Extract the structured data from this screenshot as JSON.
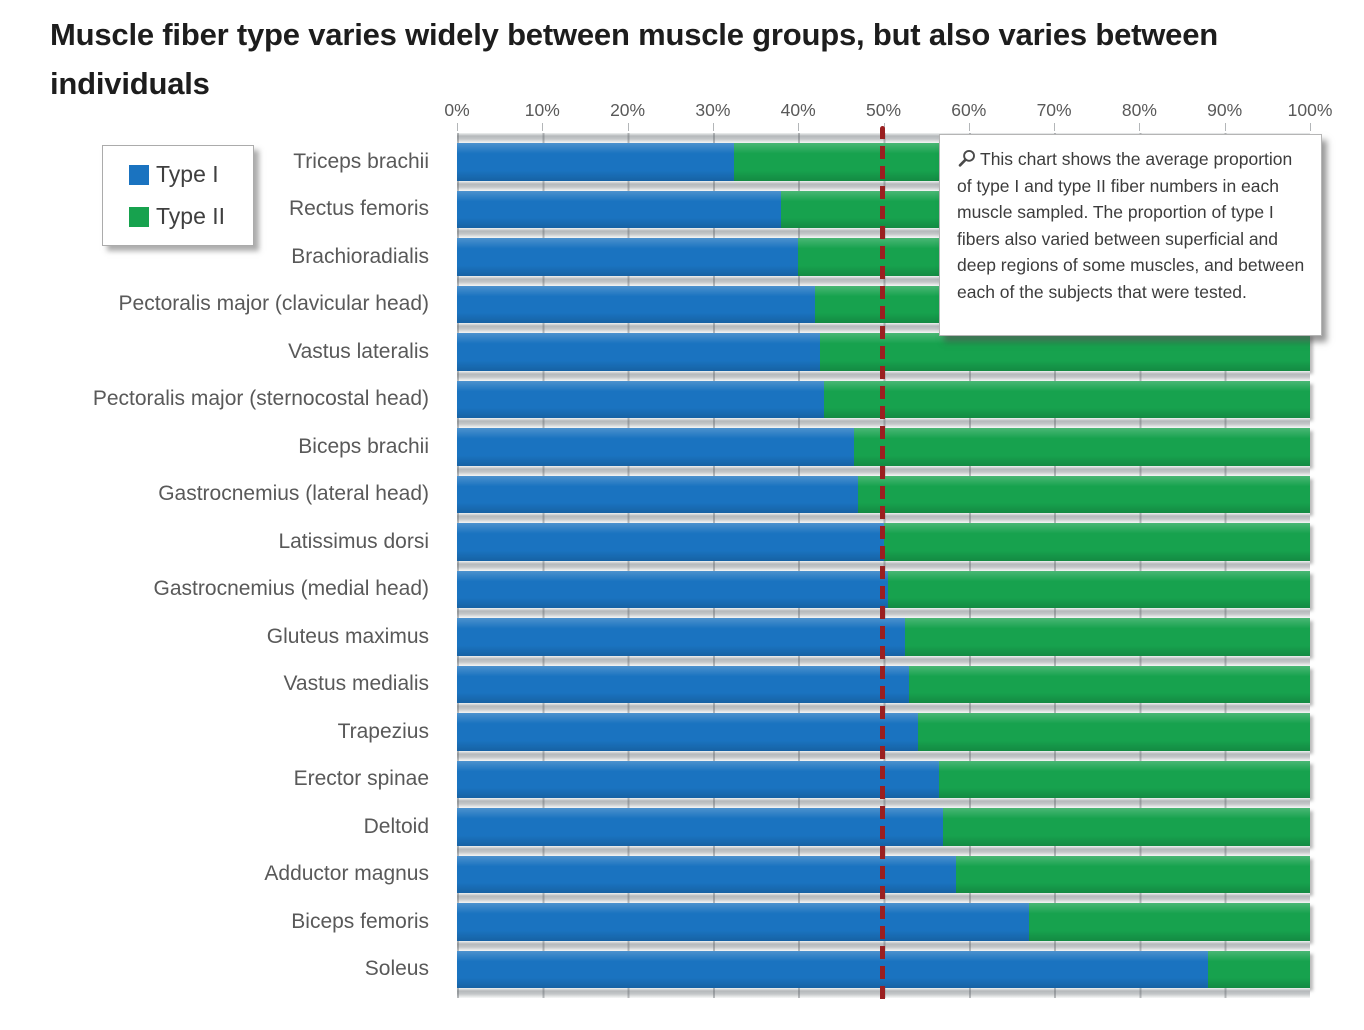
{
  "title": "Muscle fiber type varies widely between muscle groups, but also varies between individuals",
  "legend": {
    "items": [
      {
        "label": "Type I",
        "color": "#1a73c0"
      },
      {
        "label": "Type II",
        "color": "#17a24e"
      }
    ]
  },
  "annotation": {
    "icon": "magnifier-icon",
    "text": "This chart shows the average proportion of type I and type II fiber numbers in each muscle sampled. The proportion of type I fibers also varied between superficial and deep regions of some muscles, and between each of the subjects that were tested."
  },
  "chart_data": {
    "type": "bar",
    "orientation": "horizontal",
    "stacked": true,
    "title": "Muscle fiber type varies widely between muscle groups, but also varies between individuals",
    "categories": [
      "Triceps brachii",
      "Rectus femoris",
      "Brachioradialis",
      "Pectoralis major (clavicular head)",
      "Vastus lateralis",
      "Pectoralis major (sternocostal head)",
      "Biceps brachii",
      "Gastrocnemius (lateral head)",
      "Latissimus dorsi",
      "Gastrocnemius (medial head)",
      "Gluteus maximus",
      "Vastus medialis",
      "Trapezius",
      "Erector spinae",
      "Deltoid",
      "Adductor magnus",
      "Biceps femoris",
      "Soleus"
    ],
    "series": [
      {
        "name": "Type I",
        "color": "#1a73c0",
        "values": [
          32.5,
          38,
          40,
          42,
          42.5,
          43,
          46.5,
          47,
          50,
          50.5,
          52.5,
          53,
          54,
          56.5,
          57,
          58.5,
          67,
          88
        ]
      },
      {
        "name": "Type II",
        "color": "#17a24e",
        "values": [
          67.5,
          62,
          60,
          58,
          57.5,
          57,
          53.5,
          53,
          50,
          49.5,
          47.5,
          47,
          46,
          43.5,
          43,
          41.5,
          33,
          12
        ]
      }
    ],
    "x_ticks": [
      "0%",
      "10%",
      "20%",
      "30%",
      "40%",
      "50%",
      "60%",
      "70%",
      "80%",
      "90%",
      "100%"
    ],
    "xlim": [
      0,
      100
    ],
    "x_axis_position": "top",
    "reference_line": {
      "value": 50,
      "style": "dashed",
      "color": "#9b1f20"
    },
    "legend_position": "upper-left",
    "grid": "vertical-in-row-gaps"
  }
}
